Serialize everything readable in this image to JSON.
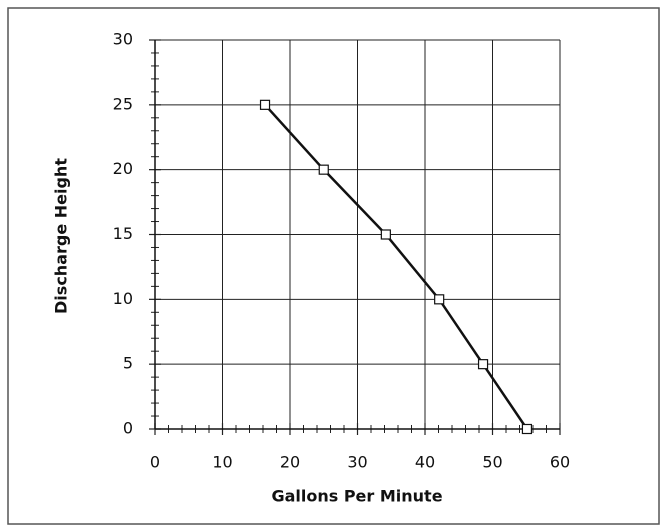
{
  "chart_data": {
    "type": "line",
    "x_label": "Gallons Per Minute",
    "y_label": "Discharge Height",
    "series": [
      {
        "x": [
          16.3,
          25.0,
          34.2,
          42.1,
          48.6,
          55.1
        ],
        "values": [
          25,
          20,
          15,
          10,
          5,
          0
        ],
        "color": "#111111"
      }
    ],
    "xlim": [
      0,
      60
    ],
    "xticks": [
      0,
      10,
      20,
      30,
      40,
      50,
      60
    ],
    "ylim": [
      0,
      30
    ],
    "yticks": [
      0,
      5,
      10,
      15,
      20,
      25,
      30
    ],
    "minor_xticks": [
      2,
      4,
      6,
      8,
      12,
      14,
      16,
      18,
      22,
      24,
      26,
      28,
      32,
      34,
      36,
      38,
      42,
      44,
      46,
      48,
      52,
      54,
      56,
      58
    ],
    "minor_yticks": [
      1,
      2,
      3,
      4,
      6,
      7,
      8,
      9,
      11,
      12,
      13,
      14,
      16,
      17,
      18,
      19,
      21,
      22,
      23,
      24,
      26,
      27,
      28,
      29
    ],
    "grid": true
  }
}
